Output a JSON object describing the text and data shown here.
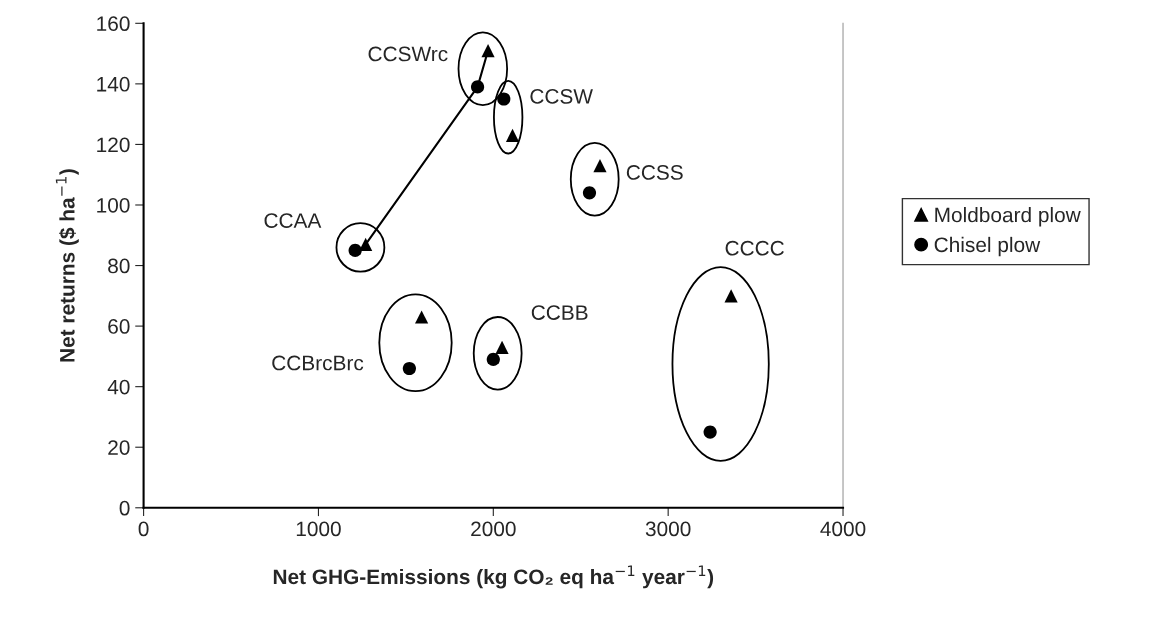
{
  "chart_data": {
    "type": "scatter",
    "xlabel": "Net GHG-Emissions (kg CO₂ eq ha$^{−1}$ year$^{−1}$)",
    "ylabel": "Net returns ($ ha$^{−1}$)",
    "xlim": [
      0,
      4000
    ],
    "xticks": [
      0,
      1000,
      2000,
      3000,
      4000
    ],
    "ylim": [
      0,
      160
    ],
    "yticks": [
      0,
      20,
      40,
      60,
      80,
      100,
      120,
      140,
      160
    ],
    "grid": false,
    "legend": "right",
    "series": [
      {
        "name": "Moldboard plow",
        "marker": "triangle",
        "color": "#000000",
        "x": [
          1270,
          1590,
          1970,
          2050,
          2110,
          2610,
          3360
        ],
        "values": [
          87,
          63,
          151,
          53,
          123,
          113,
          70
        ]
      },
      {
        "name": "Chisel plow",
        "marker": "circle",
        "color": "#000000",
        "x": [
          1210,
          1520,
          1910,
          2000,
          2060,
          2550,
          3240
        ],
        "values": [
          85,
          46,
          139,
          49,
          135,
          104,
          25
        ]
      },
      {
        "type": "line",
        "marker": "none",
        "color": "#000000",
        "x": [
          1270,
          1910,
          1970
        ],
        "values": [
          87,
          139,
          151
        ]
      }
    ],
    "annotations": [
      "CCAA",
      "CCBrcBrc",
      "CCSWrc",
      "CCBB",
      "CCSW",
      "CCSS",
      "CCCC"
    ]
  }
}
